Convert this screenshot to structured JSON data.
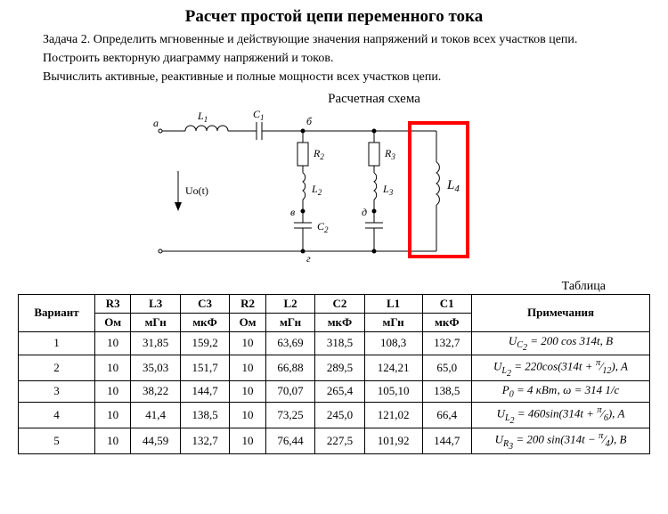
{
  "title": "Расчет простой цепи переменного тока",
  "para1": "Задача 2. Определить мгновенные и действующие значения напряжений и токов всех участков цепи.",
  "para2": "Построить векторную диаграмму напряжений и токов.",
  "para3": "Вычислить активные, реактивные и полные мощности всех участков цепи.",
  "diagram_title": "Расчетная схема",
  "diagram": {
    "a": "а",
    "b": "б",
    "v": "в",
    "d": "д",
    "g": "г",
    "L1": "L",
    "L1s": "1",
    "C1": "C",
    "C1s": "1",
    "R2": "R",
    "R2s": "2",
    "L2": "L",
    "L2s": "2",
    "C2": "C",
    "C2s": "2",
    "R3": "R",
    "R3s": "3",
    "L3": "L",
    "L3s": "3",
    "L4": "L",
    "L4s": "4",
    "U0t": "Uo(t)"
  },
  "table_label": "Таблица",
  "table": {
    "head_variant": "Вариант",
    "cols1": [
      "R3",
      "L3",
      "C3",
      "R2",
      "L2",
      "C2",
      "L1",
      "C1"
    ],
    "cols2": [
      "Ом",
      "мГн",
      "мкФ",
      "Ом",
      "мГн",
      "мкФ",
      "мГн",
      "мкФ"
    ],
    "head_notes": "Примечания",
    "rows": [
      {
        "n": "1",
        "v": [
          "10",
          "31,85",
          "159,2",
          "10",
          "63,69",
          "318,5",
          "108,3",
          "132,7"
        ],
        "note": "U<sub>C<sub>2</sub></sub> = 200 cos 314<i>t</i>, B"
      },
      {
        "n": "2",
        "v": [
          "10",
          "35,03",
          "151,7",
          "10",
          "66,88",
          "289,5",
          "124,21",
          "65,0"
        ],
        "note": "U<sub>L<sub>2</sub></sub> = 220cos(314<i>t</i> + <sup>π</sup>⁄<sub>12</sub>), A"
      },
      {
        "n": "3",
        "v": [
          "10",
          "38,22",
          "144,7",
          "10",
          "70,07",
          "265,4",
          "105,10",
          "138,5"
        ],
        "note": "P<sub>0</sub> = 4 кВт, ω = 314 1/c"
      },
      {
        "n": "4",
        "v": [
          "10",
          "41,4",
          "138,5",
          "10",
          "73,25",
          "245,0",
          "121,02",
          "66,4"
        ],
        "note": "U<sub>L<sub>2</sub></sub> = 460sin(314<i>t</i> + <sup>π</sup>⁄<sub>6</sub>), A"
      },
      {
        "n": "5",
        "v": [
          "10",
          "44,59",
          "132,7",
          "10",
          "76,44",
          "227,5",
          "101,92",
          "144,7"
        ],
        "note": "U<sub>R<sub>3</sub></sub> = 200 sin(314<i>t</i> − <sup>π</sup>⁄<sub>4</sub>), B"
      }
    ]
  },
  "style": {
    "highlight_stroke": "#ff0000",
    "highlight_width": 3,
    "wire_stroke": "#000000",
    "wire_width": 1,
    "bg": "#ffffff"
  }
}
